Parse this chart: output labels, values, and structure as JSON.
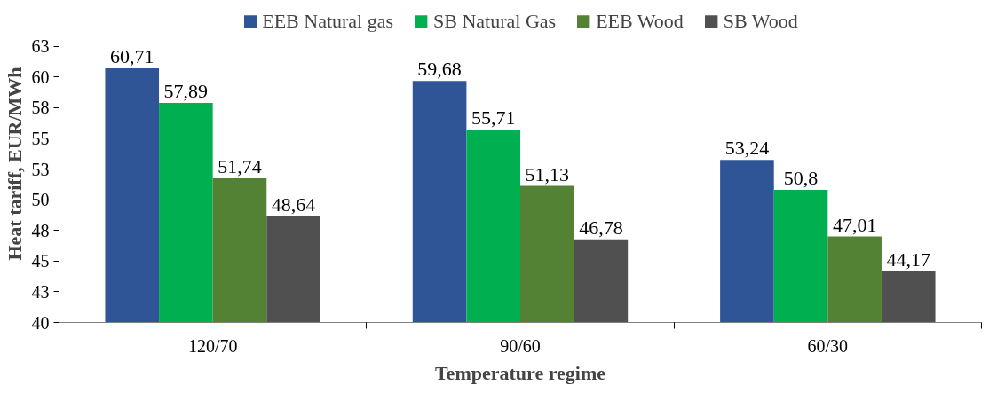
{
  "chart_data": {
    "type": "bar",
    "xlabel": "Temperature regime",
    "ylabel": "Heat tariff, EUR/MWh",
    "categories": [
      "120/70",
      "90/60",
      "60/30"
    ],
    "series": [
      {
        "name": "EEB Natural gas",
        "color": "#2f5597",
        "values": [
          60.71,
          59.68,
          53.24
        ],
        "value_labels": [
          "60,71",
          "59,68",
          "53,24"
        ]
      },
      {
        "name": "SB Natural Gas",
        "color": "#00b050",
        "values": [
          57.89,
          55.71,
          50.8
        ],
        "value_labels": [
          "57,89",
          "55,71",
          "50,8"
        ]
      },
      {
        "name": "EEB Wood",
        "color": "#548235",
        "values": [
          51.74,
          51.13,
          47.01
        ],
        "value_labels": [
          "51,74",
          "51,13",
          "47,01"
        ]
      },
      {
        "name": "SB Wood",
        "color": "#505050",
        "values": [
          48.64,
          46.78,
          44.17
        ],
        "value_labels": [
          "48,64",
          "46,78",
          "44,17"
        ]
      }
    ],
    "ylim": [
      40,
      62.5
    ],
    "yticks": [
      40,
      {
        "value": 42.5,
        "label": "43"
      },
      45,
      {
        "value": 47.5,
        "label": "48"
      },
      50,
      {
        "value": 52.5,
        "label": "53"
      },
      55,
      {
        "value": 57.5,
        "label": "58"
      },
      60,
      {
        "value": 62.5,
        "label": "63"
      }
    ],
    "grid": false,
    "legend": "top"
  }
}
